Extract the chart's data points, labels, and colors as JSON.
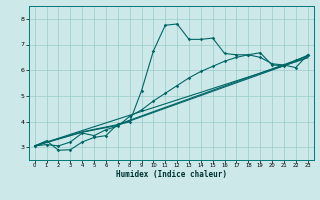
{
  "xlabel": "Humidex (Indice chaleur)",
  "bg_color": "#cce8e8",
  "line_color": "#006666",
  "grid_color": "#99cccc",
  "xlim": [
    -0.5,
    23.5
  ],
  "ylim": [
    2.5,
    8.5
  ],
  "xticks": [
    0,
    1,
    2,
    3,
    4,
    5,
    6,
    7,
    8,
    9,
    10,
    11,
    12,
    13,
    14,
    15,
    16,
    17,
    18,
    19,
    20,
    21,
    22,
    23
  ],
  "yticks": [
    3,
    4,
    5,
    6,
    7,
    8
  ],
  "line1_x": [
    0,
    1,
    2,
    3,
    4,
    5,
    6,
    7,
    8,
    9,
    10,
    11,
    12,
    13,
    14,
    15,
    16,
    17,
    18,
    19,
    20,
    21,
    22,
    23
  ],
  "line1_y": [
    3.05,
    3.25,
    2.88,
    2.9,
    3.2,
    3.38,
    3.45,
    3.9,
    3.98,
    5.2,
    6.75,
    7.75,
    7.8,
    7.2,
    7.2,
    7.25,
    6.65,
    6.6,
    6.6,
    6.5,
    6.25,
    6.2,
    6.1,
    6.6
  ],
  "line2_x": [
    0,
    1,
    2,
    3,
    4,
    5,
    6,
    7,
    8,
    9,
    10,
    11,
    12,
    13,
    14,
    15,
    16,
    17,
    18,
    19,
    20,
    21,
    22,
    23
  ],
  "line2_y": [
    3.05,
    3.1,
    3.05,
    3.2,
    3.55,
    3.45,
    3.68,
    3.82,
    4.2,
    4.45,
    4.8,
    5.1,
    5.4,
    5.7,
    5.95,
    6.15,
    6.35,
    6.5,
    6.6,
    6.68,
    6.2,
    6.18,
    6.38,
    6.58
  ],
  "line3_x": [
    0,
    4,
    7,
    8,
    23
  ],
  "line3_y": [
    3.05,
    3.6,
    3.88,
    4.05,
    6.55
  ],
  "line4_x": [
    0,
    4,
    7,
    8,
    23
  ],
  "line4_y": [
    3.05,
    3.58,
    3.85,
    4.02,
    6.5
  ],
  "line5_x": [
    0,
    23
  ],
  "line5_y": [
    3.05,
    6.48
  ]
}
